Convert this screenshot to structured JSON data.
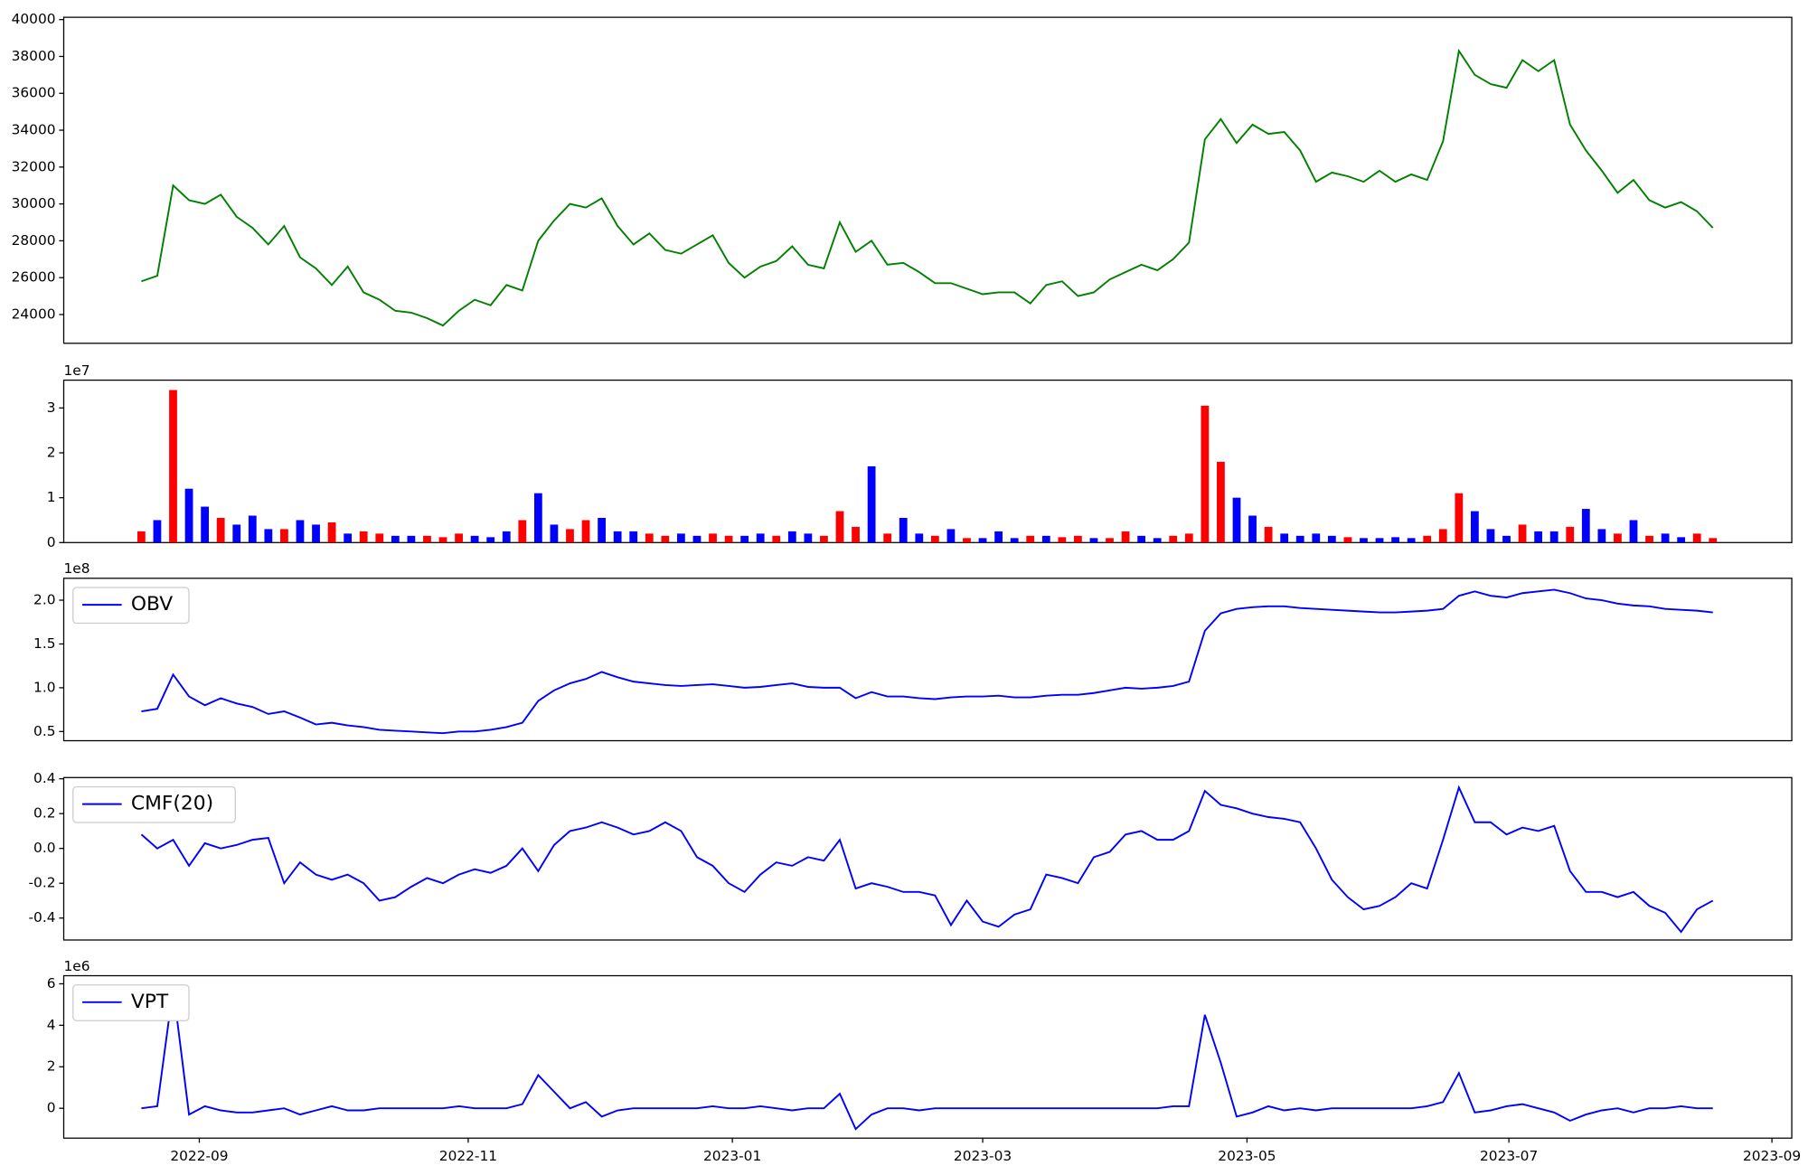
{
  "chart_data": [
    {
      "type": "line",
      "color": "green",
      "xlim": [
        -4.89,
        103.97
      ],
      "ylim": [
        22440,
        40125
      ],
      "yticks": [
        24000,
        26000,
        28000,
        30000,
        32000,
        34000,
        36000,
        38000,
        40000
      ],
      "values": [
        25800,
        26100,
        31000,
        30200,
        30000,
        30500,
        29300,
        28700,
        27800,
        28800,
        27100,
        26500,
        25600,
        26600,
        25200,
        24800,
        24200,
        24100,
        23800,
        23400,
        24200,
        24800,
        24500,
        25600,
        25300,
        28000,
        29100,
        30000,
        29800,
        30300,
        28800,
        27800,
        28400,
        27500,
        27300,
        27800,
        28300,
        26800,
        26000,
        26600,
        26900,
        27700,
        26700,
        26500,
        29000,
        27400,
        28000,
        26700,
        26800,
        26300,
        25700,
        25700,
        25400,
        25100,
        25200,
        25200,
        24600,
        25600,
        25800,
        25000,
        25200,
        25900,
        26300,
        26700,
        26400,
        27000,
        27900,
        33500,
        34600,
        33300,
        34300,
        33800,
        33900,
        32900,
        31200,
        31700,
        31500,
        31200,
        31800,
        31200,
        31600,
        31300,
        33400,
        38300,
        37000,
        36500,
        36300,
        37800,
        37200,
        37800,
        34300,
        32900,
        31800,
        30600,
        31300,
        30200,
        29800,
        30100,
        29600,
        28700
      ]
    },
    {
      "type": "bar",
      "offset_label": "1e7",
      "xlim": [
        -4.89,
        103.97
      ],
      "ylim": [
        0,
        3.62
      ],
      "yticks": [
        0,
        1,
        2,
        3
      ],
      "values": [
        0.25,
        0.5,
        3.4,
        1.2,
        0.8,
        0.55,
        0.4,
        0.6,
        0.3,
        0.3,
        0.5,
        0.4,
        0.45,
        0.2,
        0.25,
        0.2,
        0.15,
        0.15,
        0.15,
        0.12,
        0.2,
        0.15,
        0.12,
        0.25,
        0.5,
        1.1,
        0.4,
        0.3,
        0.5,
        0.55,
        0.25,
        0.25,
        0.2,
        0.15,
        0.2,
        0.15,
        0.2,
        0.15,
        0.15,
        0.2,
        0.15,
        0.25,
        0.2,
        0.15,
        0.7,
        0.35,
        1.7,
        0.2,
        0.55,
        0.2,
        0.15,
        0.3,
        0.1,
        0.1,
        0.25,
        0.1,
        0.15,
        0.15,
        0.12,
        0.15,
        0.1,
        0.1,
        0.25,
        0.15,
        0.1,
        0.15,
        0.2,
        3.05,
        1.8,
        1.0,
        0.6,
        0.35,
        0.2,
        0.15,
        0.2,
        0.15,
        0.12,
        0.1,
        0.1,
        0.12,
        0.1,
        0.15,
        0.3,
        1.1,
        0.7,
        0.3,
        0.15,
        0.4,
        0.25,
        0.25,
        0.35,
        0.75,
        0.3,
        0.2,
        0.5,
        0.15,
        0.2,
        0.12,
        0.2,
        0.1
      ],
      "colors": [
        "red",
        "blue",
        "red",
        "blue",
        "blue",
        "red",
        "blue",
        "blue",
        "blue",
        "red",
        "blue",
        "blue",
        "red",
        "blue",
        "red",
        "red",
        "blue",
        "blue",
        "red",
        "red",
        "red",
        "blue",
        "blue",
        "blue",
        "red",
        "blue",
        "blue",
        "red",
        "red",
        "blue",
        "blue",
        "blue",
        "red",
        "red",
        "blue",
        "blue",
        "red",
        "red",
        "blue",
        "blue",
        "red",
        "blue",
        "blue",
        "red",
        "red",
        "red",
        "blue",
        "red",
        "blue",
        "blue",
        "red",
        "blue",
        "red",
        "blue",
        "blue",
        "blue",
        "red",
        "blue",
        "red",
        "red",
        "blue",
        "red",
        "red",
        "blue",
        "blue",
        "red",
        "red",
        "red",
        "red",
        "blue",
        "blue",
        "red",
        "blue",
        "blue",
        "blue",
        "blue",
        "red",
        "blue",
        "blue",
        "blue",
        "blue",
        "red",
        "red",
        "red",
        "blue",
        "blue",
        "blue",
        "red",
        "blue",
        "blue",
        "red",
        "blue",
        "blue",
        "red",
        "blue",
        "red",
        "blue",
        "blue",
        "red",
        "red"
      ]
    },
    {
      "type": "line",
      "offset_label": "1e8",
      "legend": "upper left",
      "xlim": [
        -4.89,
        103.97
      ],
      "ylim": [
        0.395,
        2.25
      ],
      "yticks": [
        0.5,
        {
          "value": 1,
          "label": "1.0"
        },
        1.5,
        {
          "value": 2,
          "label": "2.0"
        }
      ],
      "series": [
        {
          "name": "OBV",
          "color": "blue",
          "values": [
            0.73,
            0.76,
            1.15,
            0.9,
            0.8,
            0.88,
            0.82,
            0.78,
            0.7,
            0.73,
            0.66,
            0.58,
            0.6,
            0.57,
            0.55,
            0.52,
            0.51,
            0.5,
            0.49,
            0.48,
            0.5,
            0.5,
            0.52,
            0.55,
            0.6,
            0.85,
            0.97,
            1.05,
            1.1,
            1.18,
            1.12,
            1.07,
            1.05,
            1.03,
            1.02,
            1.03,
            1.04,
            1.02,
            1.0,
            1.01,
            1.03,
            1.05,
            1.01,
            1.0,
            1.0,
            0.88,
            0.95,
            0.9,
            0.9,
            0.88,
            0.87,
            0.89,
            0.9,
            0.9,
            0.91,
            0.89,
            0.89,
            0.91,
            0.92,
            0.92,
            0.94,
            0.97,
            1.0,
            0.99,
            1.0,
            1.02,
            1.07,
            1.65,
            1.85,
            1.9,
            1.92,
            1.93,
            1.93,
            1.91,
            1.9,
            1.89,
            1.88,
            1.87,
            1.86,
            1.86,
            1.87,
            1.88,
            1.9,
            2.05,
            2.1,
            2.05,
            2.03,
            2.08,
            2.1,
            2.12,
            2.08,
            2.02,
            2.0,
            1.96,
            1.94,
            1.93,
            1.9,
            1.89,
            1.88,
            1.86
          ]
        }
      ]
    },
    {
      "type": "line",
      "legend": "upper left",
      "xlim": [
        -4.89,
        103.97
      ],
      "ylim": [
        -0.526,
        0.407
      ],
      "yticks": [
        -0.4,
        -0.2,
        {
          "value": 0,
          "label": "0.0"
        },
        0.2,
        0.4
      ],
      "series": [
        {
          "name": "CMF(20)",
          "color": "blue",
          "values": [
            0.08,
            0.0,
            0.05,
            -0.1,
            0.03,
            0.0,
            0.02,
            0.05,
            0.06,
            -0.2,
            -0.08,
            -0.15,
            -0.18,
            -0.15,
            -0.2,
            -0.3,
            -0.28,
            -0.22,
            -0.17,
            -0.2,
            -0.15,
            -0.12,
            -0.14,
            -0.1,
            0.0,
            -0.13,
            0.02,
            0.1,
            0.12,
            0.15,
            0.12,
            0.08,
            0.1,
            0.15,
            0.1,
            -0.05,
            -0.1,
            -0.2,
            -0.25,
            -0.15,
            -0.08,
            -0.1,
            -0.05,
            -0.07,
            0.05,
            -0.23,
            -0.2,
            -0.22,
            -0.25,
            -0.25,
            -0.27,
            -0.44,
            -0.3,
            -0.42,
            -0.45,
            -0.38,
            -0.35,
            -0.15,
            -0.17,
            -0.2,
            -0.05,
            -0.02,
            0.08,
            0.1,
            0.05,
            0.05,
            0.1,
            0.33,
            0.25,
            0.23,
            0.2,
            0.18,
            0.17,
            0.15,
            0.0,
            -0.18,
            -0.28,
            -0.35,
            -0.33,
            -0.28,
            -0.2,
            -0.23,
            0.05,
            0.35,
            0.15,
            0.15,
            0.08,
            0.12,
            0.1,
            0.13,
            -0.13,
            -0.25,
            -0.25,
            -0.28,
            -0.25,
            -0.33,
            -0.37,
            -0.48,
            -0.35,
            -0.3
          ]
        }
      ]
    },
    {
      "type": "line",
      "offset_label": "1e6",
      "legend": "upper left",
      "xlim": [
        -4.89,
        103.97
      ],
      "ylim": [
        -1.44,
        6.39
      ],
      "yticks": [
        0,
        2,
        4,
        6
      ],
      "xticks": [
        {
          "value": 3.65,
          "label": "2022-09"
        },
        {
          "value": 20.59,
          "label": "2022-11"
        },
        {
          "value": 37.23,
          "label": "2023-01"
        },
        {
          "value": 53.0,
          "label": "2023-03"
        },
        {
          "value": 69.65,
          "label": "2023-05"
        },
        {
          "value": 86.15,
          "label": "2023-07"
        },
        {
          "value": 102.72,
          "label": "2023-09"
        }
      ],
      "series": [
        {
          "name": "VPT",
          "color": "blue",
          "values": [
            0,
            0.1,
            5.8,
            -0.3,
            0.1,
            -0.1,
            -0.2,
            -0.2,
            -0.1,
            0,
            -0.3,
            -0.1,
            0.1,
            -0.1,
            -0.1,
            0,
            0,
            0,
            0,
            0,
            0.1,
            0,
            0,
            0,
            0.2,
            1.6,
            0.8,
            0,
            0.3,
            -0.4,
            -0.1,
            0,
            0,
            0,
            0,
            0,
            0.1,
            0,
            0,
            0.1,
            0,
            -0.1,
            0,
            0,
            0.7,
            -1.0,
            -0.3,
            0,
            0,
            -0.1,
            0,
            0,
            0,
            0,
            0,
            0,
            0,
            0,
            0,
            0,
            0,
            0,
            0,
            0,
            0,
            0.1,
            0.1,
            4.5,
            2.2,
            -0.4,
            -0.2,
            0.1,
            -0.1,
            0,
            -0.1,
            0,
            0,
            0,
            0,
            0,
            0,
            0.1,
            0.3,
            1.7,
            -0.2,
            -0.1,
            0.1,
            0.2,
            0,
            -0.2,
            -0.6,
            -0.3,
            -0.1,
            0,
            -0.2,
            0,
            0,
            0.1,
            0,
            0
          ]
        }
      ]
    }
  ]
}
